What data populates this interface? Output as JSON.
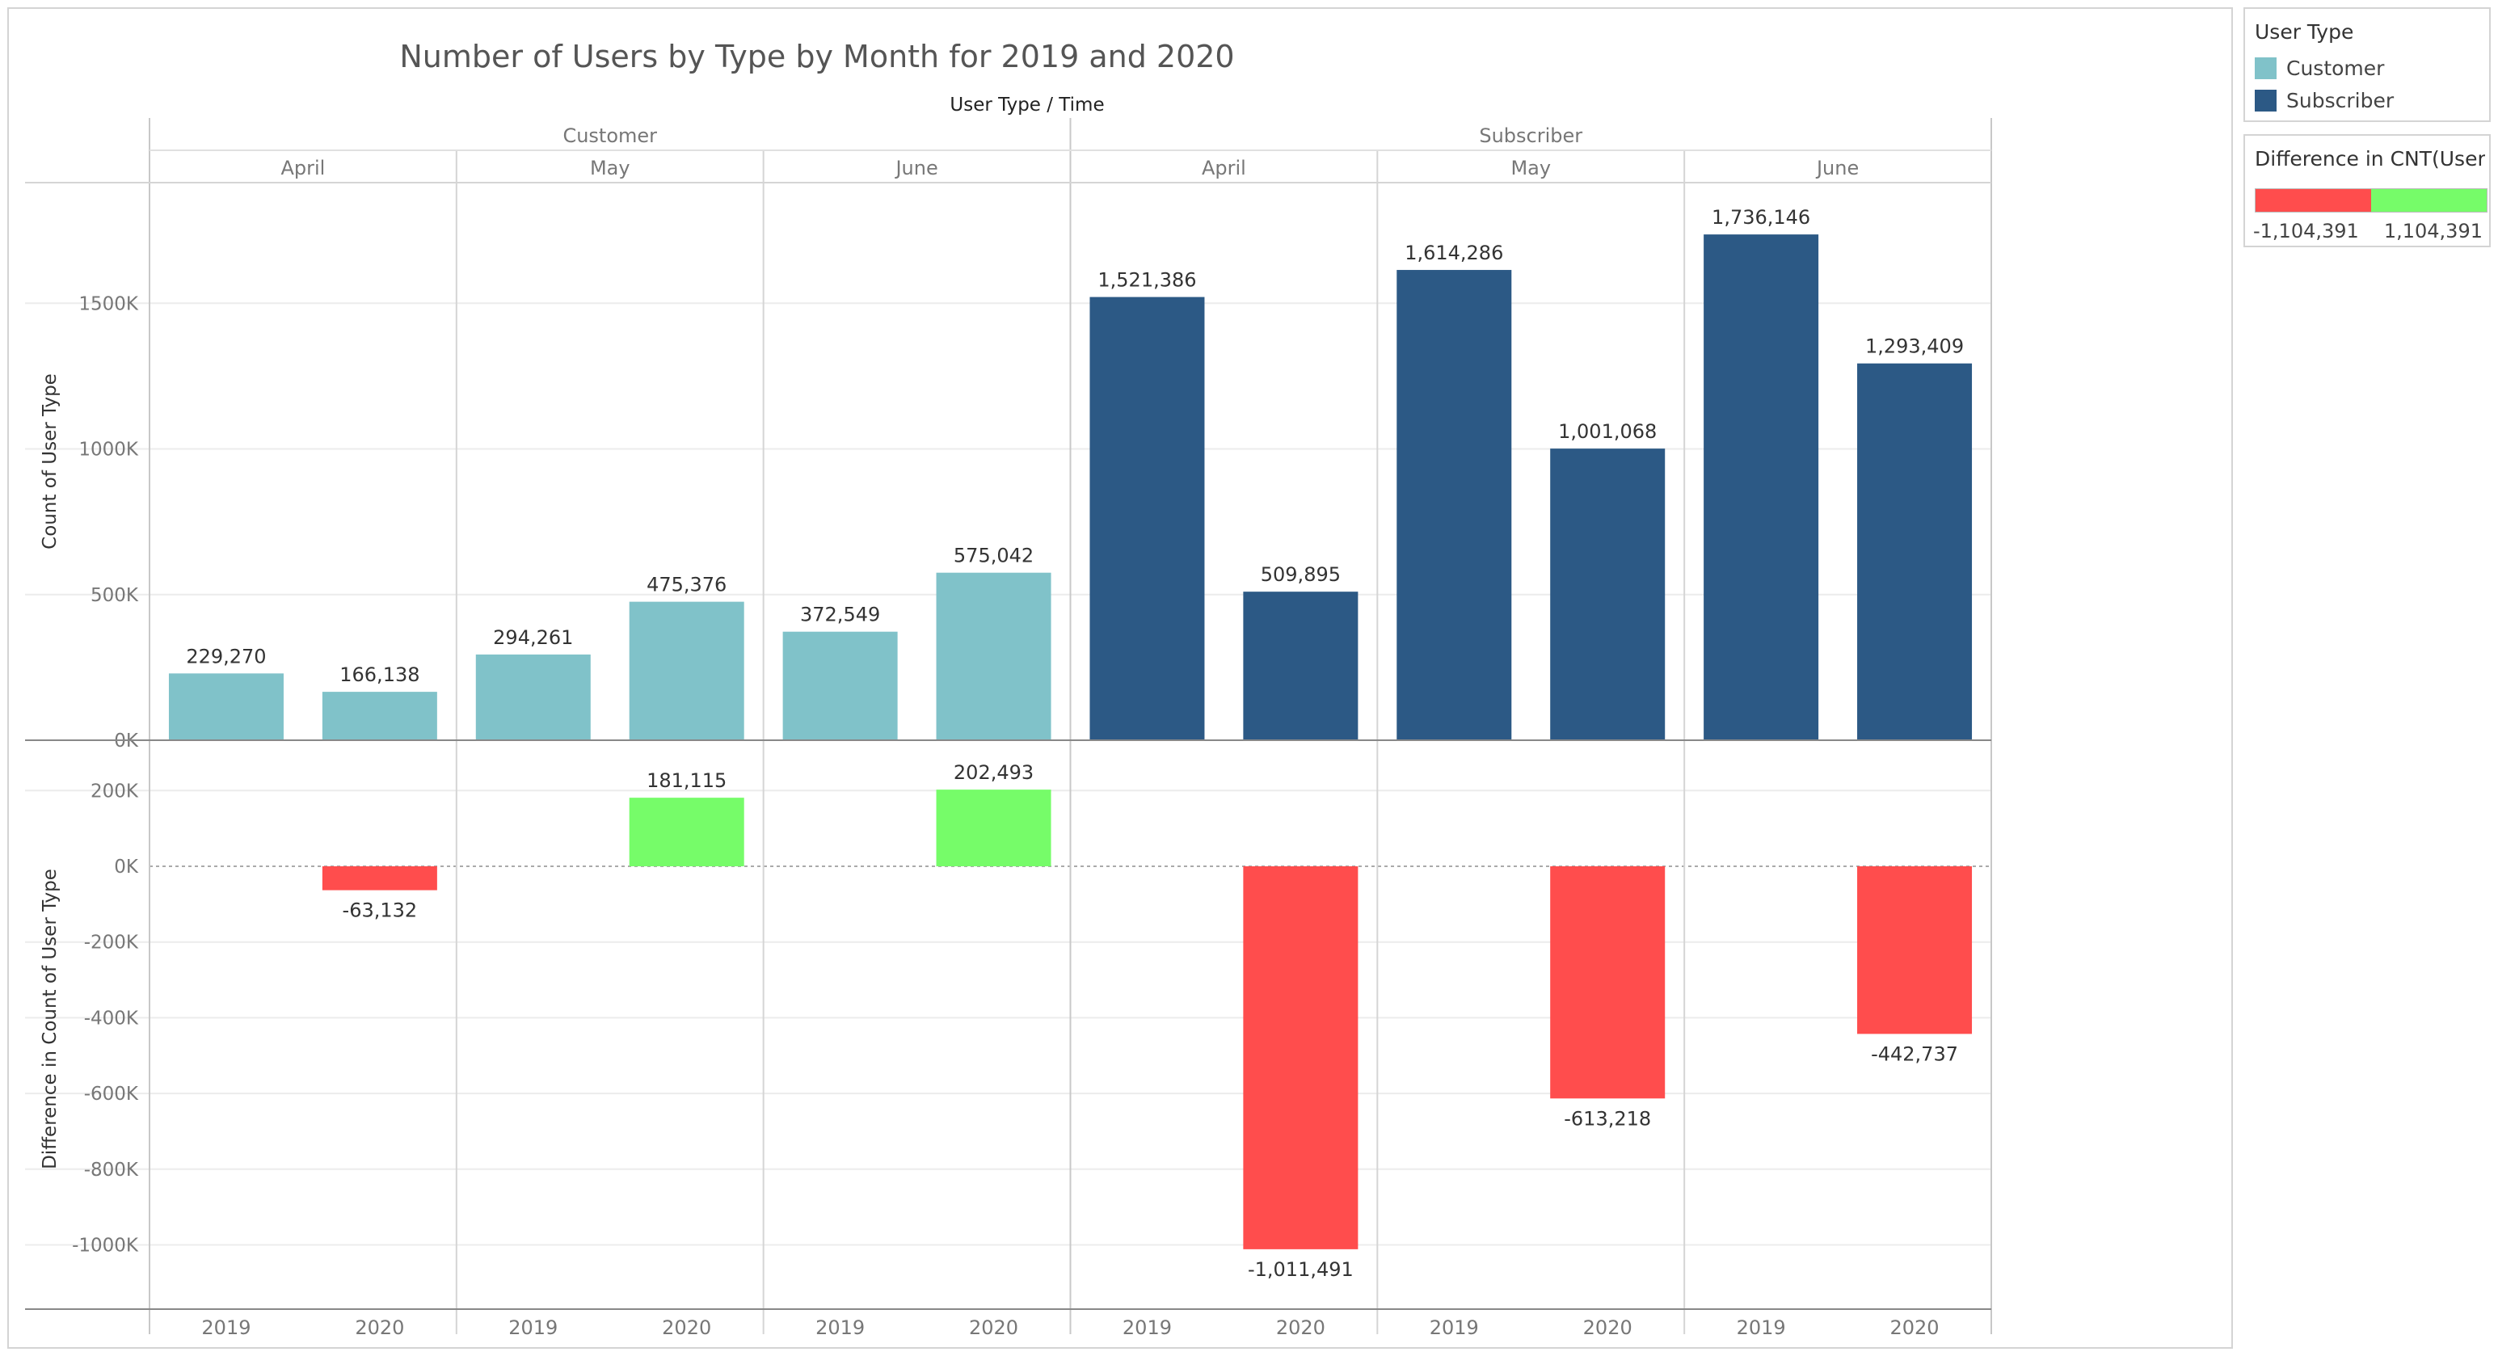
{
  "title": "Number of Users by Type by Month for 2019 and 2020",
  "header_label": "User Type  /  Time",
  "colors": {
    "customer": "#80c2c9",
    "subscriber": "#2c5985",
    "positive": "#76fc69",
    "negative": "#ff4d4d"
  },
  "legend": {
    "title": "User Type",
    "items": [
      {
        "label": "Customer",
        "color": "#80c2c9"
      },
      {
        "label": "Subscriber",
        "color": "#2c5985"
      }
    ]
  },
  "diff_legend": {
    "title": "Difference in CNT(User ...",
    "min_label": "-1,104,391",
    "max_label": "1,104,391"
  },
  "chart_data": [
    {
      "type": "bar",
      "title": "Number of Users by Type by Month for 2019 and 2020",
      "ylabel": "Count of User Type",
      "ylim": [
        0,
        1900000
      ],
      "yticks": [
        0,
        500000,
        1000000,
        1500000
      ],
      "ytick_labels": [
        "0K",
        "500K",
        "1000K",
        "1500K"
      ],
      "groups": [
        {
          "user_type": "Customer",
          "months": [
            {
              "month": "April",
              "years": [
                "2019",
                "2020"
              ],
              "values": [
                229270,
                166138
              ],
              "labels": [
                "229,270",
                "166,138"
              ]
            },
            {
              "month": "May",
              "years": [
                "2019",
                "2020"
              ],
              "values": [
                294261,
                475376
              ],
              "labels": [
                "294,261",
                "475,376"
              ]
            },
            {
              "month": "June",
              "years": [
                "2019",
                "2020"
              ],
              "values": [
                372549,
                575042
              ],
              "labels": [
                "372,549",
                "575,042"
              ]
            }
          ]
        },
        {
          "user_type": "Subscriber",
          "months": [
            {
              "month": "April",
              "years": [
                "2019",
                "2020"
              ],
              "values": [
                1521386,
                509895
              ],
              "labels": [
                "1,521,386",
                "509,895"
              ]
            },
            {
              "month": "May",
              "years": [
                "2019",
                "2020"
              ],
              "values": [
                1614286,
                1001068
              ],
              "labels": [
                "1,614,286",
                "1,001,068"
              ]
            },
            {
              "month": "June",
              "years": [
                "2019",
                "2020"
              ],
              "values": [
                1736146,
                1293409
              ],
              "labels": [
                "1,736,146",
                "1,293,409"
              ]
            }
          ]
        }
      ]
    },
    {
      "type": "bar",
      "ylabel": "Difference in Count of User Type",
      "ylim": [
        -1150000,
        310000
      ],
      "yticks": [
        200000,
        0,
        -200000,
        -400000,
        -600000,
        -800000,
        -1000000
      ],
      "ytick_labels": [
        "200K",
        "0K",
        "-200K",
        "-400K",
        "-600K",
        "-800K",
        "-1000K"
      ],
      "groups": [
        {
          "user_type": "Customer",
          "months": [
            {
              "month": "April",
              "years": [
                "2019",
                "2020"
              ],
              "values": [
                null,
                -63132
              ],
              "labels": [
                "",
                "-63,132"
              ]
            },
            {
              "month": "May",
              "years": [
                "2019",
                "2020"
              ],
              "values": [
                null,
                181115
              ],
              "labels": [
                "",
                "181,115"
              ]
            },
            {
              "month": "June",
              "years": [
                "2019",
                "2020"
              ],
              "values": [
                null,
                202493
              ],
              "labels": [
                "",
                "202,493"
              ]
            }
          ]
        },
        {
          "user_type": "Subscriber",
          "months": [
            {
              "month": "April",
              "years": [
                "2019",
                "2020"
              ],
              "values": [
                null,
                -1011491
              ],
              "labels": [
                "",
                "-1,011,491"
              ]
            },
            {
              "month": "May",
              "years": [
                "2019",
                "2020"
              ],
              "values": [
                null,
                -613218
              ],
              "labels": [
                "",
                "-613,218"
              ]
            },
            {
              "month": "June",
              "years": [
                "2019",
                "2020"
              ],
              "values": [
                null,
                -442737
              ],
              "labels": [
                "",
                "-442,737"
              ]
            }
          ]
        }
      ]
    }
  ]
}
